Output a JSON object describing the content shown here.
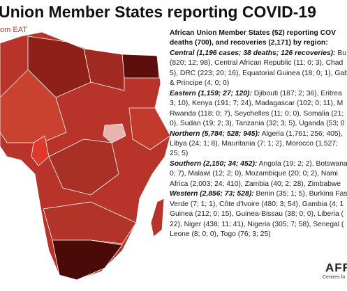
{
  "header": {
    "title": "Union Member States reporting COVID-19",
    "subtitle": "om EAT"
  },
  "text": {
    "intro": [
      "African Union Member States (52) reporting COV",
      "deaths (700), and recoveries (2,171) by region:"
    ],
    "regions": [
      {
        "heading": "Central (1,196 cases; 38 deaths; 126 recoveries):",
        "rest": " Bu",
        "lines": [
          "(820; 12; 98), Central African Republic (11; 0; 3), Chad",
          "5), DRC (223; 20; 16), Equatorial Guinea (18; 0; 1), Gab",
          "& Principe (4; 0; 0)"
        ]
      },
      {
        "heading": "Eastern (1,159; 27; 120):",
        "rest": " Djibouti (187; 2; 36), Eritrea",
        "lines": [
          "3; 10), Kenya (191; 7; 24), Madagascar (102; 0; 11), M",
          "Rwanda (118; 0; 7), Seychelles (11; 0; 0), Somalia (21;",
          "0), Sudan (19; 2; 3), Tanzania (32; 3; 5), Uganda (53; 0"
        ]
      },
      {
        "heading": "Northern (5,784; 528; 945):",
        "rest": " Algeria (1,761; 256; 405),",
        "lines": [
          "Libya (24; 1; 8), Mauritania (7; 1; 2), Morocco (1,527;",
          "25; 5)"
        ]
      },
      {
        "heading": "Southern (2,150; 34; 452):",
        "rest": " Angola (19; 2; 2), Botswana",
        "lines": [
          "0; 7), Malawi (12; 2; 0), Mozambique (20; 0; 2), Nami",
          "Africa (2,003; 24; 410), Zambia (40; 2; 28), Zimbabwe"
        ]
      },
      {
        "heading": "Western (2,856; 73; 528):",
        "rest": " Benin (35; 1; 5), Burkina Fas",
        "lines": [
          "Verde (7; 1; 1), Côte d'Ivoire (480; 3; 54), Gambia (4; 1",
          "Guinea (212; 0; 15), Guinea-Bissau (38; 0; 0), Liberia (",
          "22), Niger (438; 11; 41), Nigeria (305; 7; 58), Senegal (",
          "Leone (8; 0; 0), Togo (76; 3; 25)"
        ]
      }
    ]
  },
  "logo": {
    "name": "AFR",
    "tagline": "Centres fo"
  }
}
